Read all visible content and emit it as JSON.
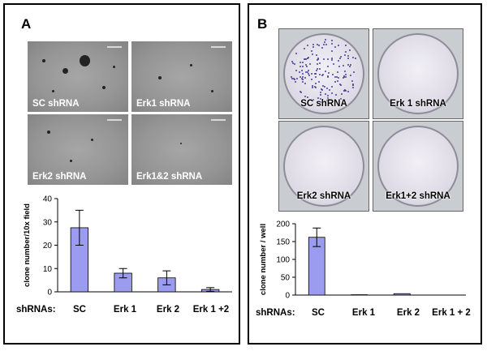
{
  "panels": {
    "a": {
      "label": "A"
    },
    "b": {
      "label": "B"
    }
  },
  "micrographs": [
    {
      "caption": "SC shRNA"
    },
    {
      "caption": "Erk1 shRNA"
    },
    {
      "caption": "Erk2 shRNA"
    },
    {
      "caption": "Erk1&2 shRNA"
    }
  ],
  "plates": [
    {
      "caption": "SC  shRNA"
    },
    {
      "caption": "Erk 1 shRNA"
    },
    {
      "caption": "Erk2 shRNA"
    },
    {
      "caption": "Erk1+2 shRNA"
    }
  ],
  "chart_data": [
    {
      "type": "bar",
      "ylabel": "clone number/10x field",
      "xlabel_prefix": "shRNAs:",
      "categories": [
        "SC",
        "Erk 1",
        "Erk 2",
        "Erk 1 +2"
      ],
      "values": [
        27.5,
        8,
        6,
        1
      ],
      "errors": [
        7.5,
        2,
        3,
        0.8
      ],
      "ylim": [
        0,
        40
      ],
      "yticks": [
        0,
        10,
        20,
        30,
        40
      ],
      "bar_color": "#9b9bf0"
    },
    {
      "type": "bar",
      "ylabel": "clone number / well",
      "xlabel_prefix": "shRNAs:",
      "categories": [
        "SC",
        "Erk 1",
        "Erk 2",
        "Erk 1 + 2"
      ],
      "values": [
        162,
        1,
        4,
        0
      ],
      "errors": [
        26,
        0,
        0,
        0
      ],
      "ylim": [
        0,
        200
      ],
      "yticks": [
        0,
        50,
        100,
        150,
        200
      ],
      "bar_color": "#9b9bf0"
    }
  ]
}
